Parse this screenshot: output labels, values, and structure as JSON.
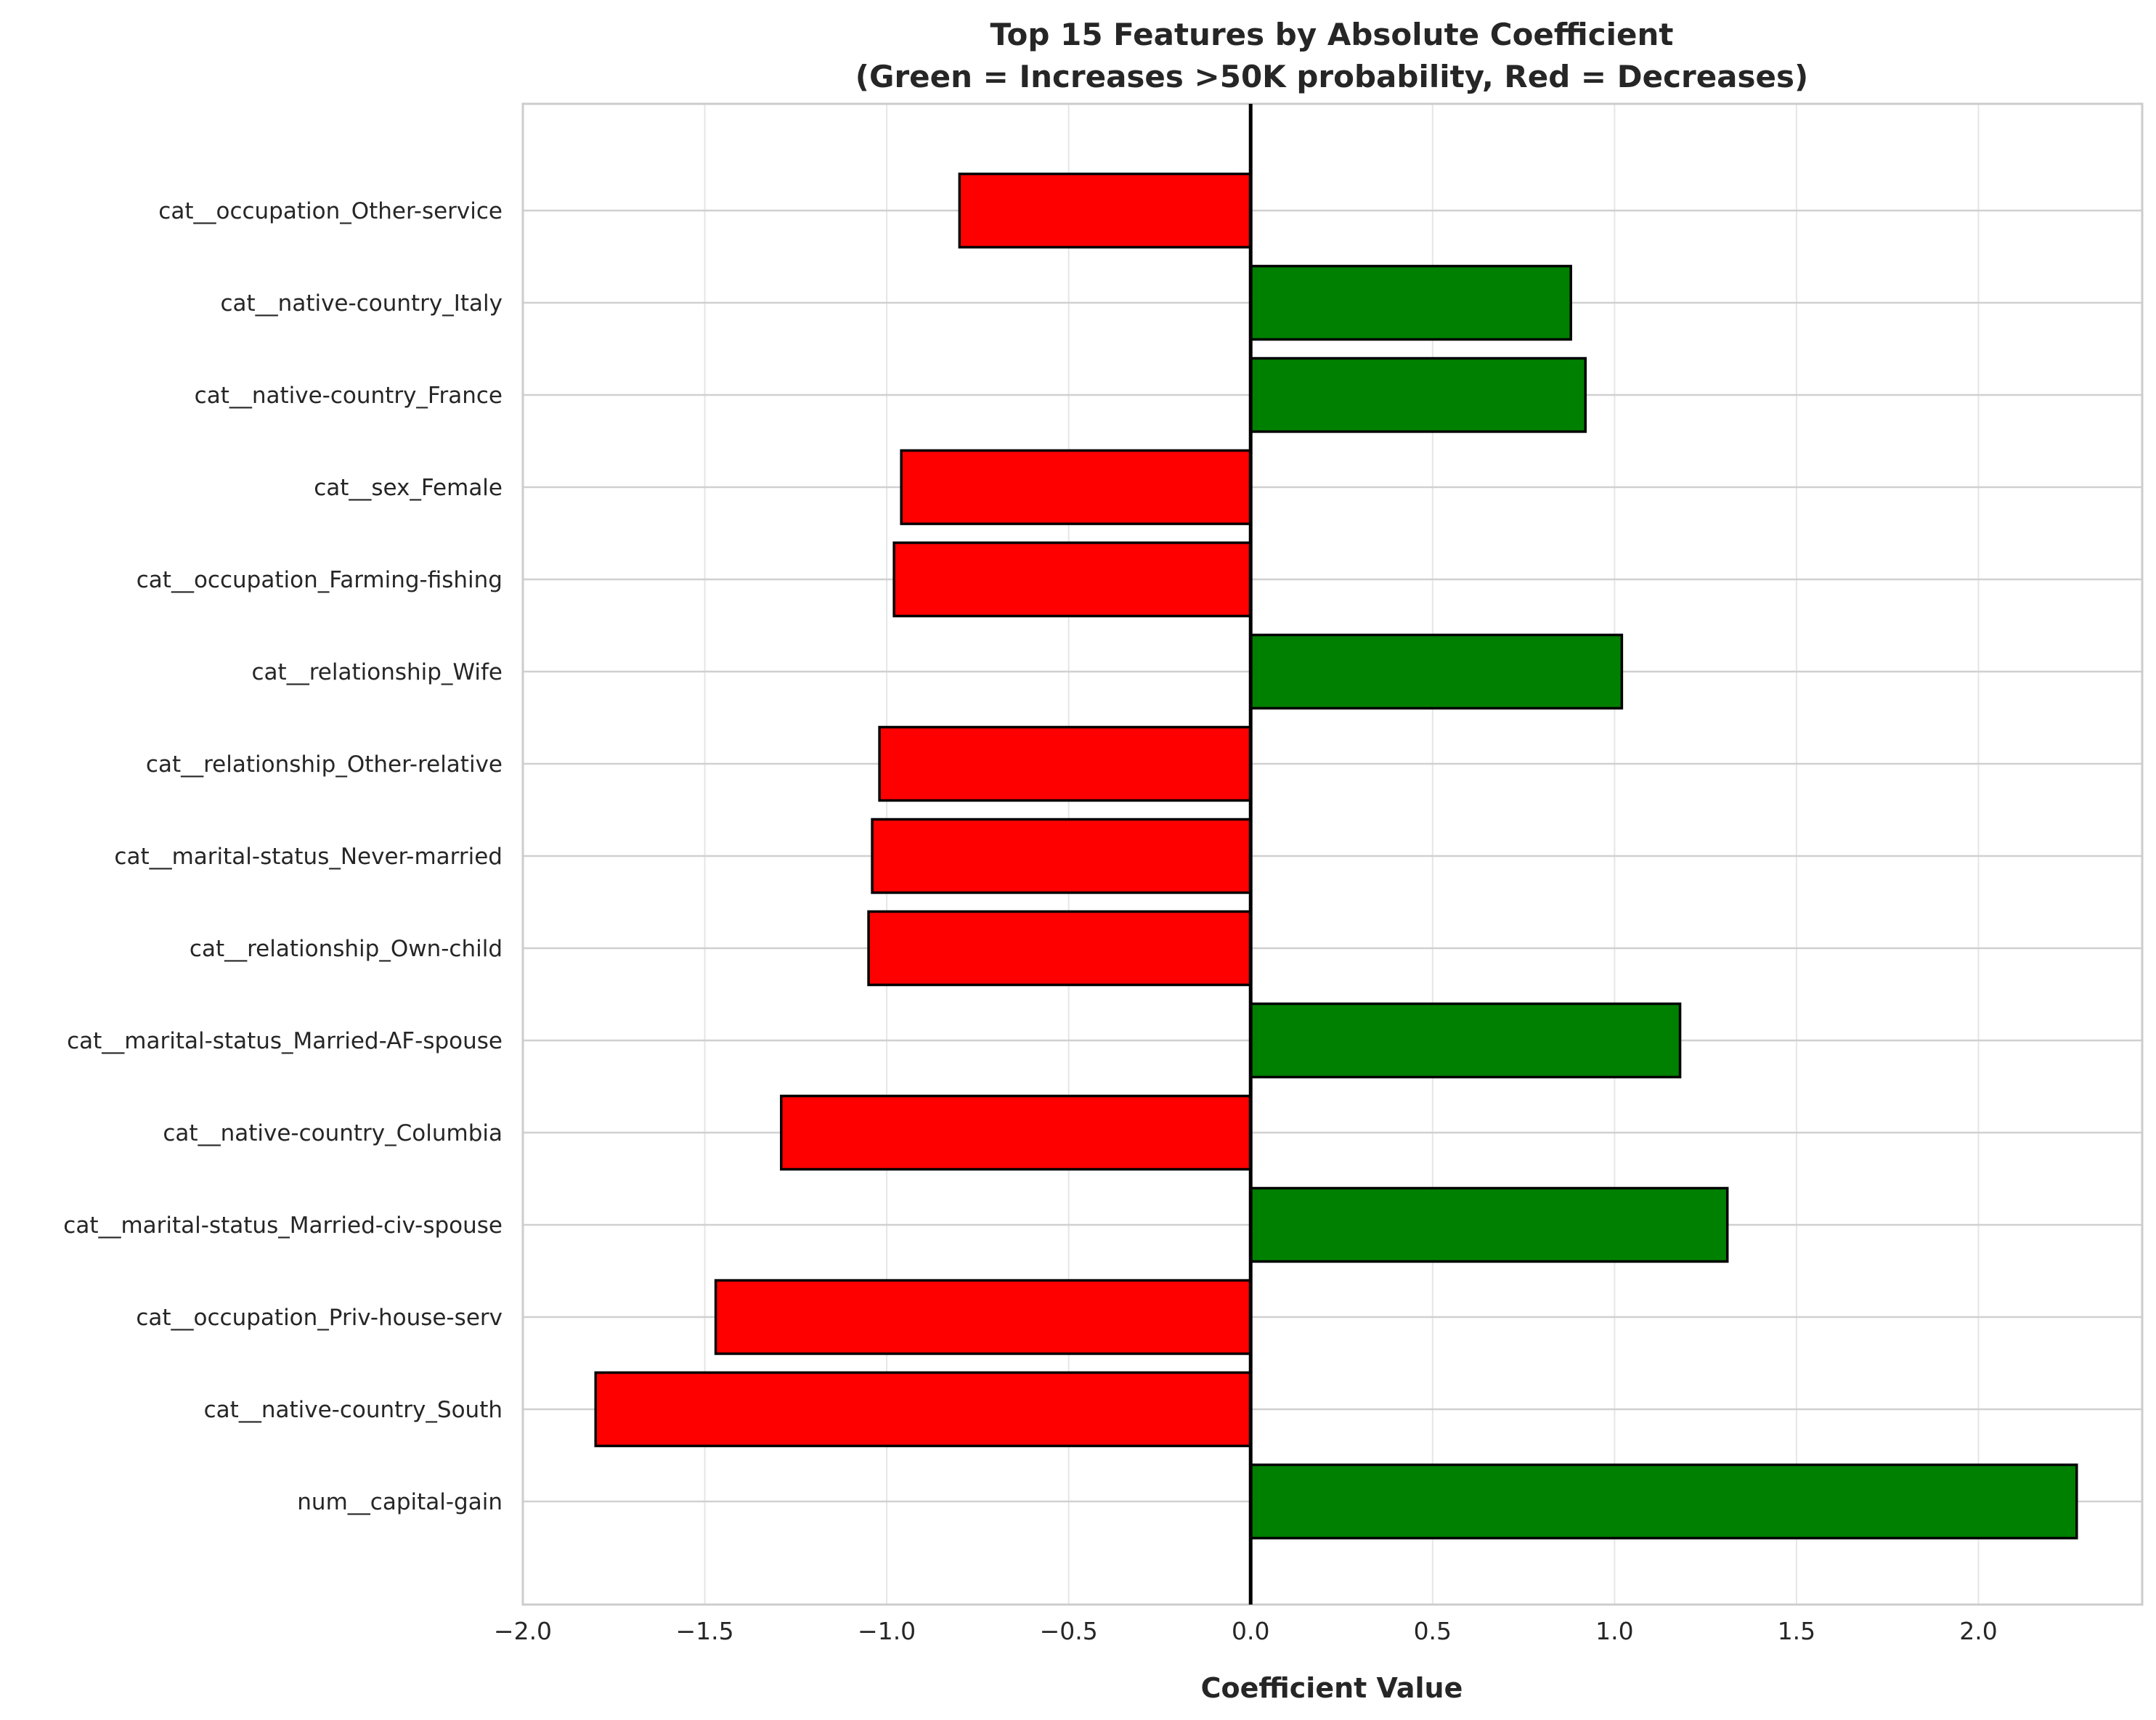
{
  "chart_data": {
    "type": "bar",
    "orientation": "horizontal",
    "title": "Top 15 Features by Absolute Coefficient",
    "subtitle": "(Green = Increases >50K probability, Red = Decreases)",
    "xlabel": "Coefficient Value",
    "ylabel": "",
    "xlim": [
      -2.0,
      2.45
    ],
    "xticks": [
      -2.0,
      -1.5,
      -1.0,
      -0.5,
      0.0,
      0.5,
      1.0,
      1.5,
      2.0
    ],
    "xtick_labels": [
      "−2.0",
      "−1.5",
      "−1.0",
      "−0.5",
      "0.0",
      "0.5",
      "1.0",
      "1.5",
      "2.0"
    ],
    "grid": true,
    "categories": [
      "cat__occupation_Other-service",
      "cat__native-country_Italy",
      "cat__native-country_France",
      "cat__sex_Female",
      "cat__occupation_Farming-fishing",
      "cat__relationship_Wife",
      "cat__relationship_Other-relative",
      "cat__marital-status_Never-married",
      "cat__relationship_Own-child",
      "cat__marital-status_Married-AF-spouse",
      "cat__native-country_Columbia",
      "cat__marital-status_Married-civ-spouse",
      "cat__occupation_Priv-house-serv",
      "cat__native-country_South",
      "num__capital-gain"
    ],
    "values": [
      -0.8,
      0.88,
      0.92,
      -0.96,
      -0.98,
      1.02,
      -1.02,
      -1.04,
      -1.05,
      1.18,
      -1.29,
      1.31,
      -1.47,
      -1.8,
      2.27
    ],
    "colors": {
      "positive": "#008000",
      "negative": "#ff0000",
      "bar_edge": "#000000",
      "zero_line": "#000000",
      "grid": "#e6e6e6",
      "axes_edge": "#cccccc"
    }
  }
}
